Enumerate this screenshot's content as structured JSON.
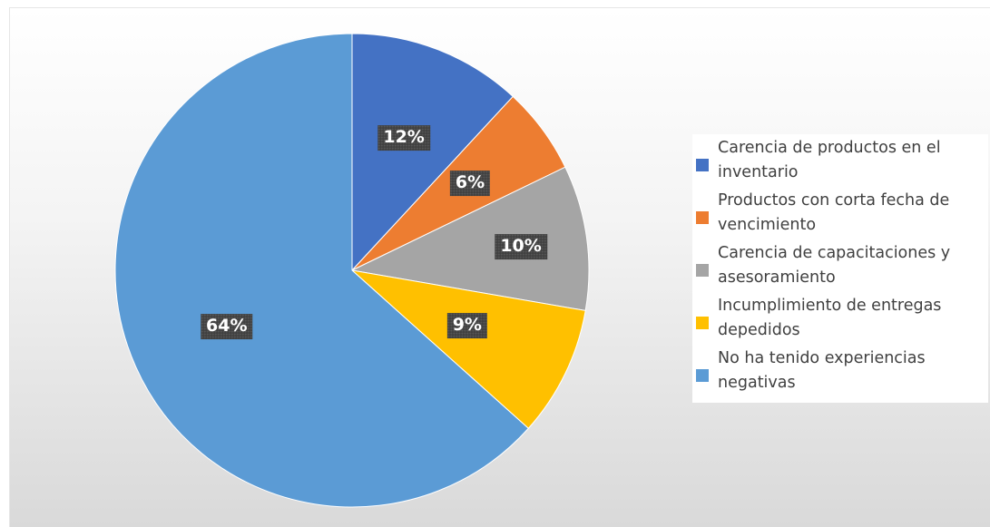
{
  "chart_data": {
    "type": "pie",
    "title": "",
    "slices": [
      {
        "label": "Carencia de productos en el inventario",
        "value": 12,
        "display": "12%",
        "color": "#4472C4"
      },
      {
        "label": "Productos con corta fecha de vencimiento",
        "value": 6,
        "display": "6%",
        "color": "#ED7D31"
      },
      {
        "label": "Carencia de capacitaciones y asesoramiento",
        "value": 10,
        "display": "10%",
        "color": "#A5A5A5"
      },
      {
        "label": "Incumplimiento de entregas depedidos",
        "value": 9,
        "display": "9%",
        "color": "#FFC000"
      },
      {
        "label": "No ha tenido experiencias negativas",
        "value": 64,
        "display": "64%",
        "color": "#5B9BD5"
      }
    ],
    "start_angle": "12 o'clock",
    "direction": "clockwise",
    "legend": "right"
  }
}
